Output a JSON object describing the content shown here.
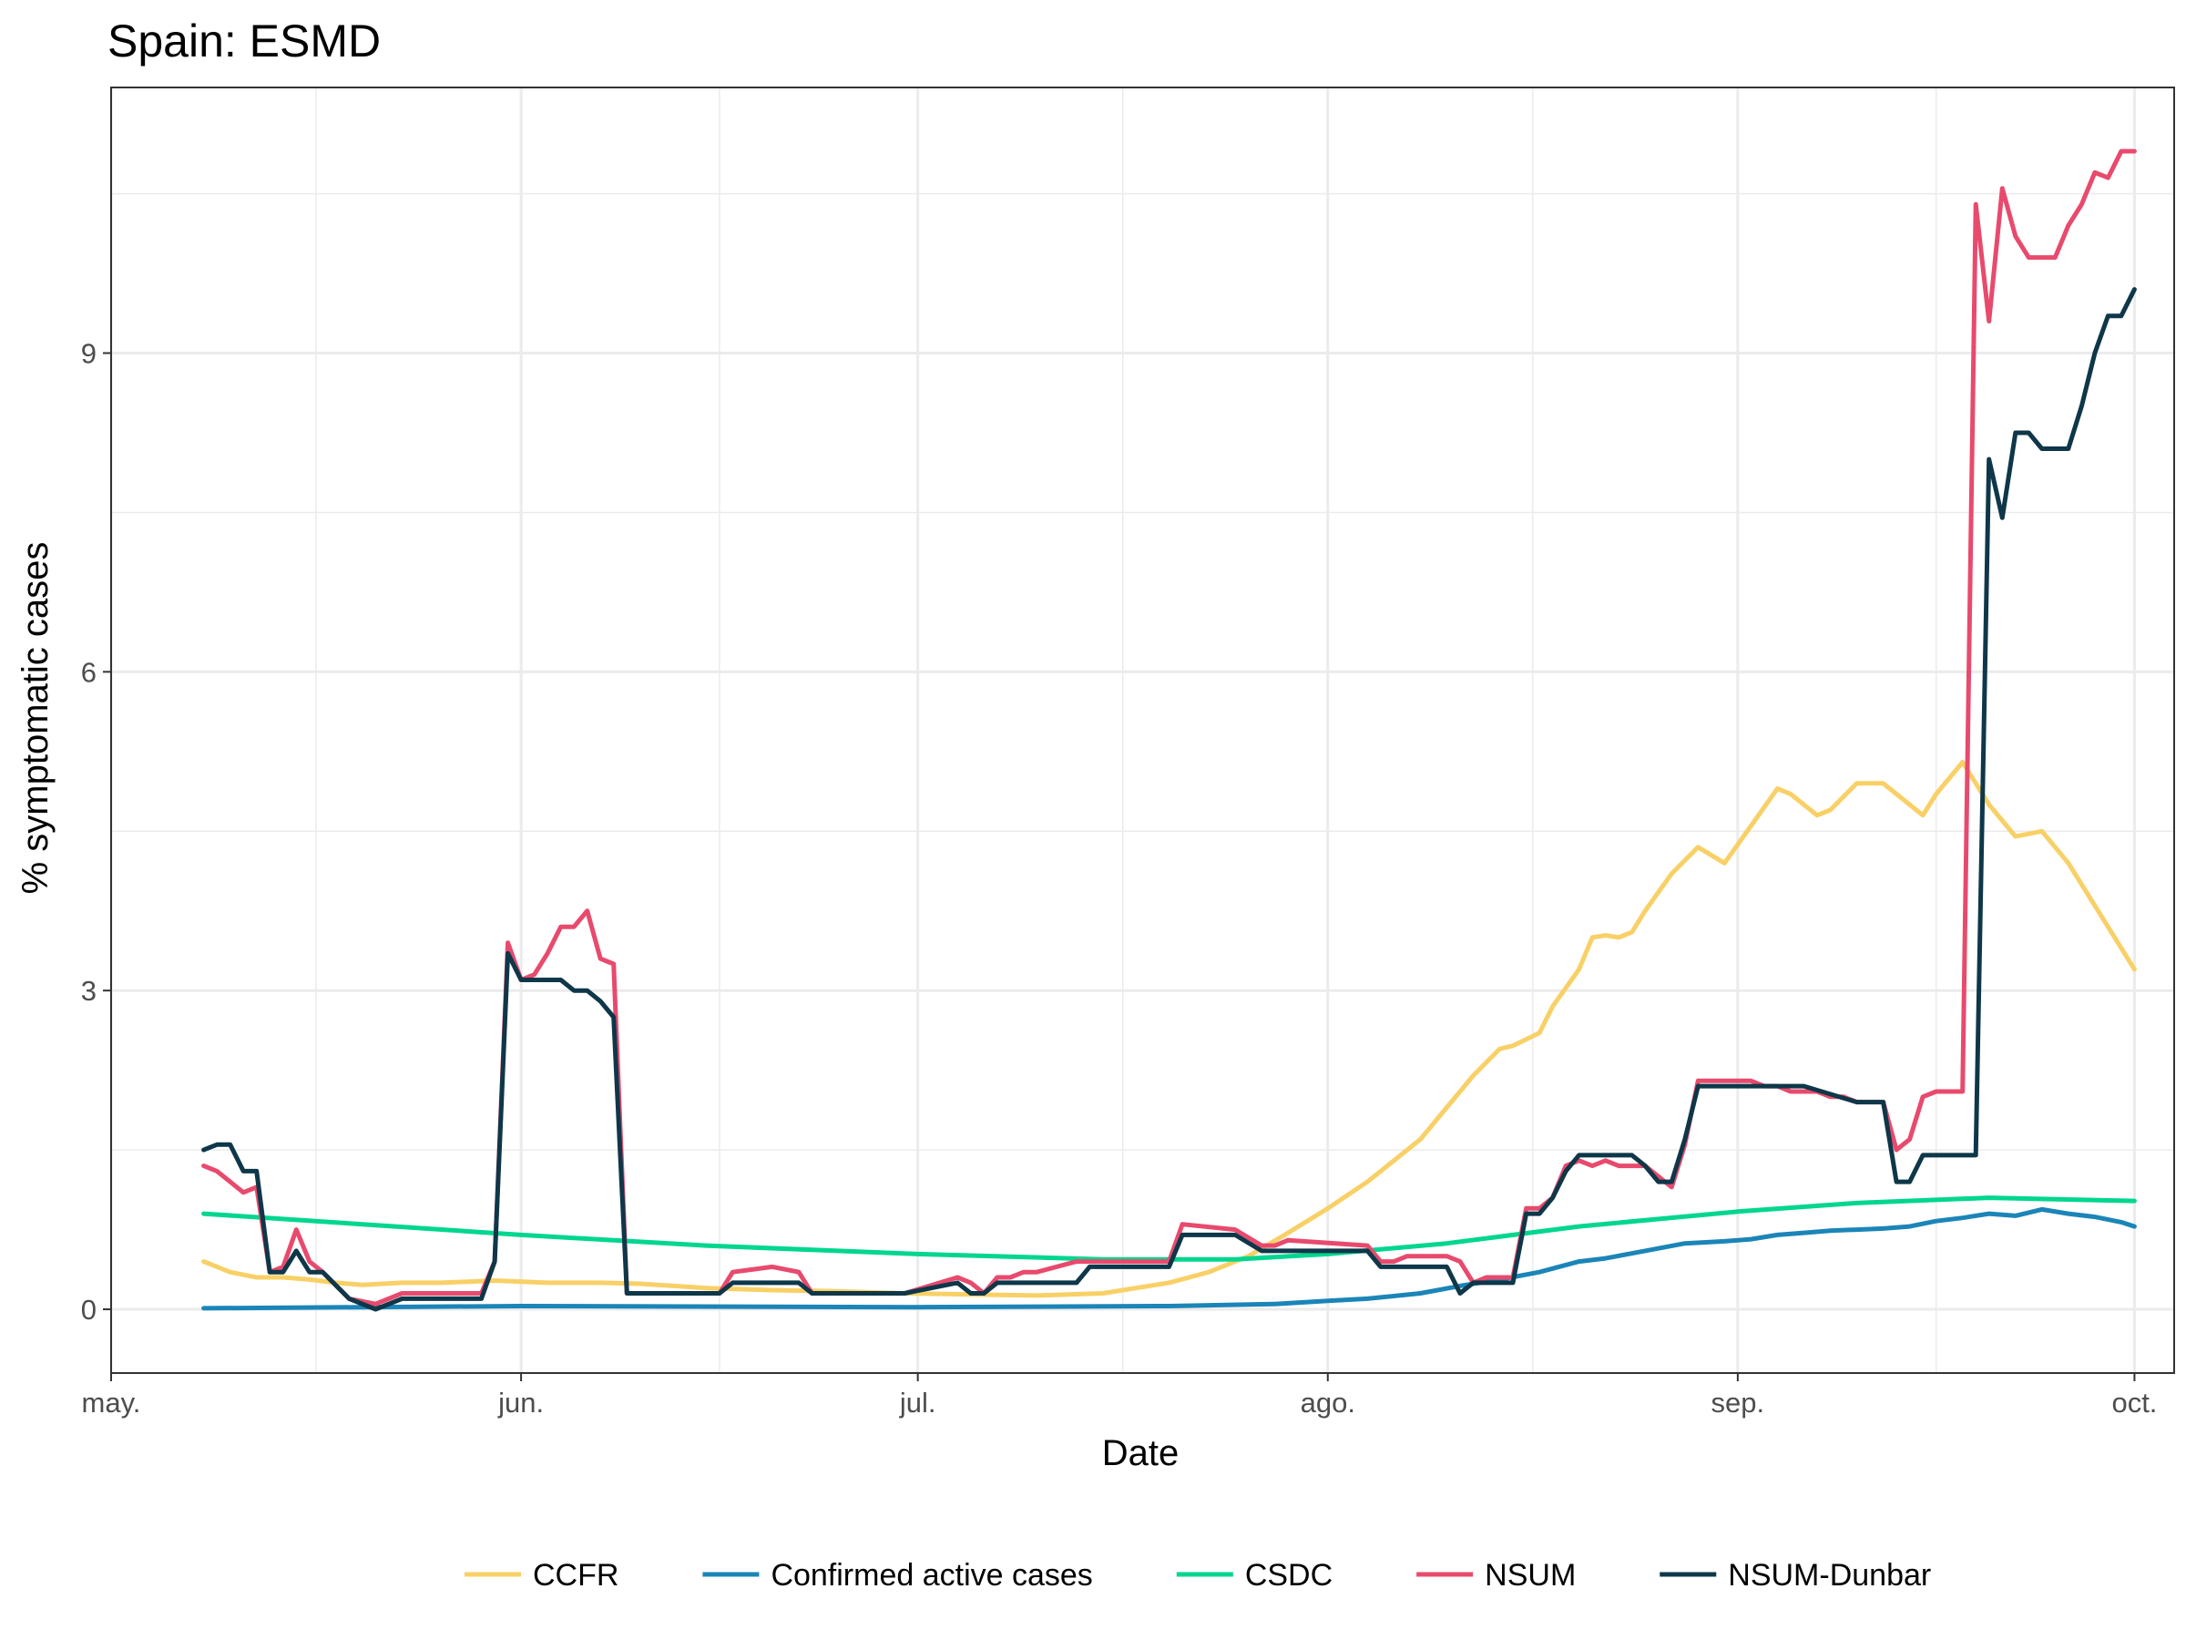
{
  "chart_data": {
    "type": "line",
    "title": "Spain: ESMD",
    "xlabel": "Date",
    "ylabel": "% symptomatic cases",
    "x_ticks": [
      {
        "label": "may.",
        "date": "2020-05-01"
      },
      {
        "label": "jun.",
        "date": "2020-06-01"
      },
      {
        "label": "jul.",
        "date": "2020-07-01"
      },
      {
        "label": "ago.",
        "date": "2020-08-01"
      },
      {
        "label": "sep.",
        "date": "2020-09-01"
      },
      {
        "label": "oct.",
        "date": "2020-10-01"
      }
    ],
    "xlim": [
      "2020-05-01",
      "2020-10-04"
    ],
    "y_ticks": [
      0,
      3,
      6,
      9
    ],
    "ylim": [
      -0.6,
      11.5
    ],
    "grid": true,
    "legend_position": "bottom",
    "series": [
      {
        "name": "CCFR",
        "color": "#F8D066",
        "x": [
          "2020-05-08",
          "2020-05-10",
          "2020-05-12",
          "2020-05-14",
          "2020-05-16",
          "2020-05-18",
          "2020-05-20",
          "2020-05-23",
          "2020-05-26",
          "2020-05-30",
          "2020-06-03",
          "2020-06-07",
          "2020-06-10",
          "2020-06-15",
          "2020-06-20",
          "2020-06-25",
          "2020-06-30",
          "2020-07-05",
          "2020-07-10",
          "2020-07-15",
          "2020-07-20",
          "2020-07-23",
          "2020-07-26",
          "2020-07-29",
          "2020-08-01",
          "2020-08-04",
          "2020-08-06",
          "2020-08-08",
          "2020-08-10",
          "2020-08-12",
          "2020-08-14",
          "2020-08-15",
          "2020-08-17",
          "2020-08-18",
          "2020-08-20",
          "2020-08-21",
          "2020-08-22",
          "2020-08-23",
          "2020-08-24",
          "2020-08-25",
          "2020-08-27",
          "2020-08-29",
          "2020-08-31",
          "2020-09-02",
          "2020-09-04",
          "2020-09-05",
          "2020-09-07",
          "2020-09-08",
          "2020-09-10",
          "2020-09-12",
          "2020-09-13",
          "2020-09-15",
          "2020-09-16",
          "2020-09-18",
          "2020-09-20",
          "2020-09-22",
          "2020-09-24",
          "2020-09-26",
          "2020-09-28",
          "2020-09-30",
          "2020-10-01"
        ],
        "values": [
          0.45,
          0.35,
          0.3,
          0.3,
          0.28,
          0.25,
          0.23,
          0.25,
          0.25,
          0.27,
          0.25,
          0.25,
          0.24,
          0.2,
          0.18,
          0.17,
          0.15,
          0.14,
          0.13,
          0.15,
          0.25,
          0.35,
          0.5,
          0.72,
          0.95,
          1.2,
          1.4,
          1.6,
          1.9,
          2.2,
          2.45,
          2.48,
          2.6,
          2.85,
          3.2,
          3.5,
          3.52,
          3.5,
          3.55,
          3.75,
          4.1,
          4.35,
          4.2,
          4.55,
          4.9,
          4.85,
          4.65,
          4.7,
          4.95,
          4.95,
          4.85,
          4.65,
          4.85,
          5.15,
          4.75,
          4.45,
          4.5,
          4.2,
          3.8,
          3.4,
          3.2
        ]
      },
      {
        "name": "Confirmed active cases",
        "color": "#1B85B8",
        "x": [
          "2020-05-08",
          "2020-06-01",
          "2020-07-01",
          "2020-07-20",
          "2020-07-28",
          "2020-08-01",
          "2020-08-04",
          "2020-08-08",
          "2020-08-11",
          "2020-08-14",
          "2020-08-17",
          "2020-08-20",
          "2020-08-22",
          "2020-08-25",
          "2020-08-28",
          "2020-08-31",
          "2020-09-02",
          "2020-09-04",
          "2020-09-06",
          "2020-09-08",
          "2020-09-10",
          "2020-09-12",
          "2020-09-14",
          "2020-09-16",
          "2020-09-18",
          "2020-09-20",
          "2020-09-22",
          "2020-09-24",
          "2020-09-26",
          "2020-09-28",
          "2020-09-30",
          "2020-10-01"
        ],
        "values": [
          0.01,
          0.03,
          0.02,
          0.03,
          0.05,
          0.08,
          0.1,
          0.15,
          0.22,
          0.28,
          0.35,
          0.45,
          0.48,
          0.55,
          0.62,
          0.64,
          0.66,
          0.7,
          0.72,
          0.74,
          0.75,
          0.76,
          0.78,
          0.83,
          0.86,
          0.9,
          0.88,
          0.94,
          0.9,
          0.87,
          0.82,
          0.78
        ]
      },
      {
        "name": "CSDC",
        "color": "#00D68F",
        "x": [
          "2020-05-08",
          "2020-05-20",
          "2020-06-01",
          "2020-06-15",
          "2020-07-01",
          "2020-07-15",
          "2020-07-25",
          "2020-08-01",
          "2020-08-10",
          "2020-08-20",
          "2020-09-01",
          "2020-09-10",
          "2020-09-20",
          "2020-10-01"
        ],
        "values": [
          0.9,
          0.8,
          0.7,
          0.6,
          0.52,
          0.47,
          0.47,
          0.52,
          0.62,
          0.78,
          0.92,
          1.0,
          1.05,
          1.02
        ]
      },
      {
        "name": "NSUM",
        "color": "#E84A6D",
        "x": [
          "2020-05-08",
          "2020-05-09",
          "2020-05-10",
          "2020-05-11",
          "2020-05-12",
          "2020-05-13",
          "2020-05-14",
          "2020-05-15",
          "2020-05-16",
          "2020-05-17",
          "2020-05-19",
          "2020-05-21",
          "2020-05-23",
          "2020-05-29",
          "2020-05-30",
          "2020-05-31",
          "2020-06-01",
          "2020-06-02",
          "2020-06-03",
          "2020-06-04",
          "2020-06-05",
          "2020-06-06",
          "2020-06-07",
          "2020-06-08",
          "2020-06-09",
          "2020-06-10",
          "2020-06-16",
          "2020-06-17",
          "2020-06-20",
          "2020-06-22",
          "2020-06-23",
          "2020-06-25",
          "2020-06-30",
          "2020-07-04",
          "2020-07-05",
          "2020-07-06",
          "2020-07-07",
          "2020-07-08",
          "2020-07-09",
          "2020-07-10",
          "2020-07-13",
          "2020-07-14",
          "2020-07-20",
          "2020-07-21",
          "2020-07-25",
          "2020-07-27",
          "2020-07-28",
          "2020-07-29",
          "2020-08-04",
          "2020-08-05",
          "2020-08-06",
          "2020-08-07",
          "2020-08-10",
          "2020-08-11",
          "2020-08-12",
          "2020-08-13",
          "2020-08-14",
          "2020-08-15",
          "2020-08-16",
          "2020-08-17",
          "2020-08-18",
          "2020-08-19",
          "2020-08-20",
          "2020-08-21",
          "2020-08-22",
          "2020-08-23",
          "2020-08-24",
          "2020-08-25",
          "2020-08-26",
          "2020-08-27",
          "2020-08-28",
          "2020-08-29",
          "2020-09-01",
          "2020-09-02",
          "2020-09-03",
          "2020-09-04",
          "2020-09-05",
          "2020-09-06",
          "2020-09-07",
          "2020-09-08",
          "2020-09-09",
          "2020-09-10",
          "2020-09-11",
          "2020-09-12",
          "2020-09-13",
          "2020-09-14",
          "2020-09-15",
          "2020-09-16",
          "2020-09-17",
          "2020-09-18",
          "2020-09-19",
          "2020-09-20",
          "2020-09-21",
          "2020-09-22",
          "2020-09-23",
          "2020-09-24",
          "2020-09-25",
          "2020-09-26",
          "2020-09-27",
          "2020-09-28",
          "2020-09-29",
          "2020-09-30",
          "2020-10-01"
        ],
        "values": [
          1.35,
          1.3,
          1.2,
          1.1,
          1.15,
          0.35,
          0.4,
          0.75,
          0.45,
          0.35,
          0.1,
          0.05,
          0.15,
          0.15,
          0.45,
          3.45,
          3.1,
          3.15,
          3.35,
          3.6,
          3.6,
          3.75,
          3.3,
          3.25,
          0.15,
          0.15,
          0.15,
          0.35,
          0.4,
          0.35,
          0.15,
          0.15,
          0.15,
          0.3,
          0.25,
          0.15,
          0.3,
          0.3,
          0.35,
          0.35,
          0.45,
          0.45,
          0.45,
          0.8,
          0.75,
          0.6,
          0.6,
          0.65,
          0.6,
          0.45,
          0.45,
          0.5,
          0.5,
          0.45,
          0.25,
          0.3,
          0.3,
          0.3,
          0.95,
          0.95,
          1.05,
          1.35,
          1.4,
          1.35,
          1.4,
          1.35,
          1.35,
          1.35,
          1.25,
          1.15,
          1.55,
          2.15,
          2.15,
          2.15,
          2.1,
          2.1,
          2.05,
          2.05,
          2.05,
          2.0,
          2.0,
          1.95,
          1.95,
          1.95,
          1.5,
          1.6,
          2.0,
          2.05,
          2.05,
          2.05,
          10.4,
          9.3,
          10.55,
          10.1,
          9.9,
          9.9,
          9.9,
          10.2,
          10.4,
          10.7,
          10.65,
          10.9,
          10.9
        ]
      },
      {
        "name": "NSUM-Dunbar",
        "color": "#0E3749",
        "x": [
          "2020-05-08",
          "2020-05-09",
          "2020-05-10",
          "2020-05-11",
          "2020-05-12",
          "2020-05-13",
          "2020-05-14",
          "2020-05-15",
          "2020-05-16",
          "2020-05-17",
          "2020-05-19",
          "2020-05-21",
          "2020-05-23",
          "2020-05-29",
          "2020-05-30",
          "2020-05-31",
          "2020-06-01",
          "2020-06-04",
          "2020-06-05",
          "2020-06-06",
          "2020-06-07",
          "2020-06-08",
          "2020-06-09",
          "2020-06-16",
          "2020-06-17",
          "2020-06-20",
          "2020-06-22",
          "2020-06-23",
          "2020-06-25",
          "2020-06-30",
          "2020-07-04",
          "2020-07-05",
          "2020-07-06",
          "2020-07-07",
          "2020-07-08",
          "2020-07-09",
          "2020-07-10",
          "2020-07-13",
          "2020-07-14",
          "2020-07-20",
          "2020-07-21",
          "2020-07-25",
          "2020-07-27",
          "2020-07-28",
          "2020-08-04",
          "2020-08-05",
          "2020-08-06",
          "2020-08-07",
          "2020-08-10",
          "2020-08-11",
          "2020-08-12",
          "2020-08-13",
          "2020-08-14",
          "2020-08-15",
          "2020-08-16",
          "2020-08-17",
          "2020-08-18",
          "2020-08-19",
          "2020-08-20",
          "2020-08-24",
          "2020-08-25",
          "2020-08-26",
          "2020-08-27",
          "2020-08-28",
          "2020-08-29",
          "2020-09-06",
          "2020-09-10",
          "2020-09-11",
          "2020-09-12",
          "2020-09-13",
          "2020-09-14",
          "2020-09-15",
          "2020-09-16",
          "2020-09-17",
          "2020-09-18",
          "2020-09-19",
          "2020-09-20",
          "2020-09-21",
          "2020-09-22",
          "2020-09-23",
          "2020-09-24",
          "2020-09-25",
          "2020-09-26",
          "2020-09-27",
          "2020-09-28",
          "2020-09-29",
          "2020-09-30",
          "2020-10-01"
        ],
        "values": [
          1.5,
          1.55,
          1.55,
          1.3,
          1.3,
          0.35,
          0.35,
          0.55,
          0.35,
          0.35,
          0.1,
          0.0,
          0.1,
          0.1,
          0.45,
          3.35,
          3.1,
          3.1,
          3.0,
          3.0,
          2.9,
          2.75,
          0.15,
          0.15,
          0.25,
          0.25,
          0.25,
          0.15,
          0.15,
          0.15,
          0.25,
          0.15,
          0.15,
          0.25,
          0.25,
          0.25,
          0.25,
          0.25,
          0.4,
          0.4,
          0.7,
          0.7,
          0.55,
          0.55,
          0.55,
          0.4,
          0.4,
          0.4,
          0.4,
          0.15,
          0.25,
          0.25,
          0.25,
          0.25,
          0.9,
          0.9,
          1.05,
          1.3,
          1.45,
          1.45,
          1.35,
          1.2,
          1.2,
          1.6,
          2.1,
          2.1,
          1.95,
          1.95,
          1.95,
          1.2,
          1.2,
          1.45,
          1.45,
          1.45,
          1.45,
          1.45,
          8.0,
          7.45,
          8.25,
          8.25,
          8.1,
          8.1,
          8.1,
          8.5,
          9.0,
          9.35,
          9.35,
          9.6
        ]
      }
    ]
  }
}
